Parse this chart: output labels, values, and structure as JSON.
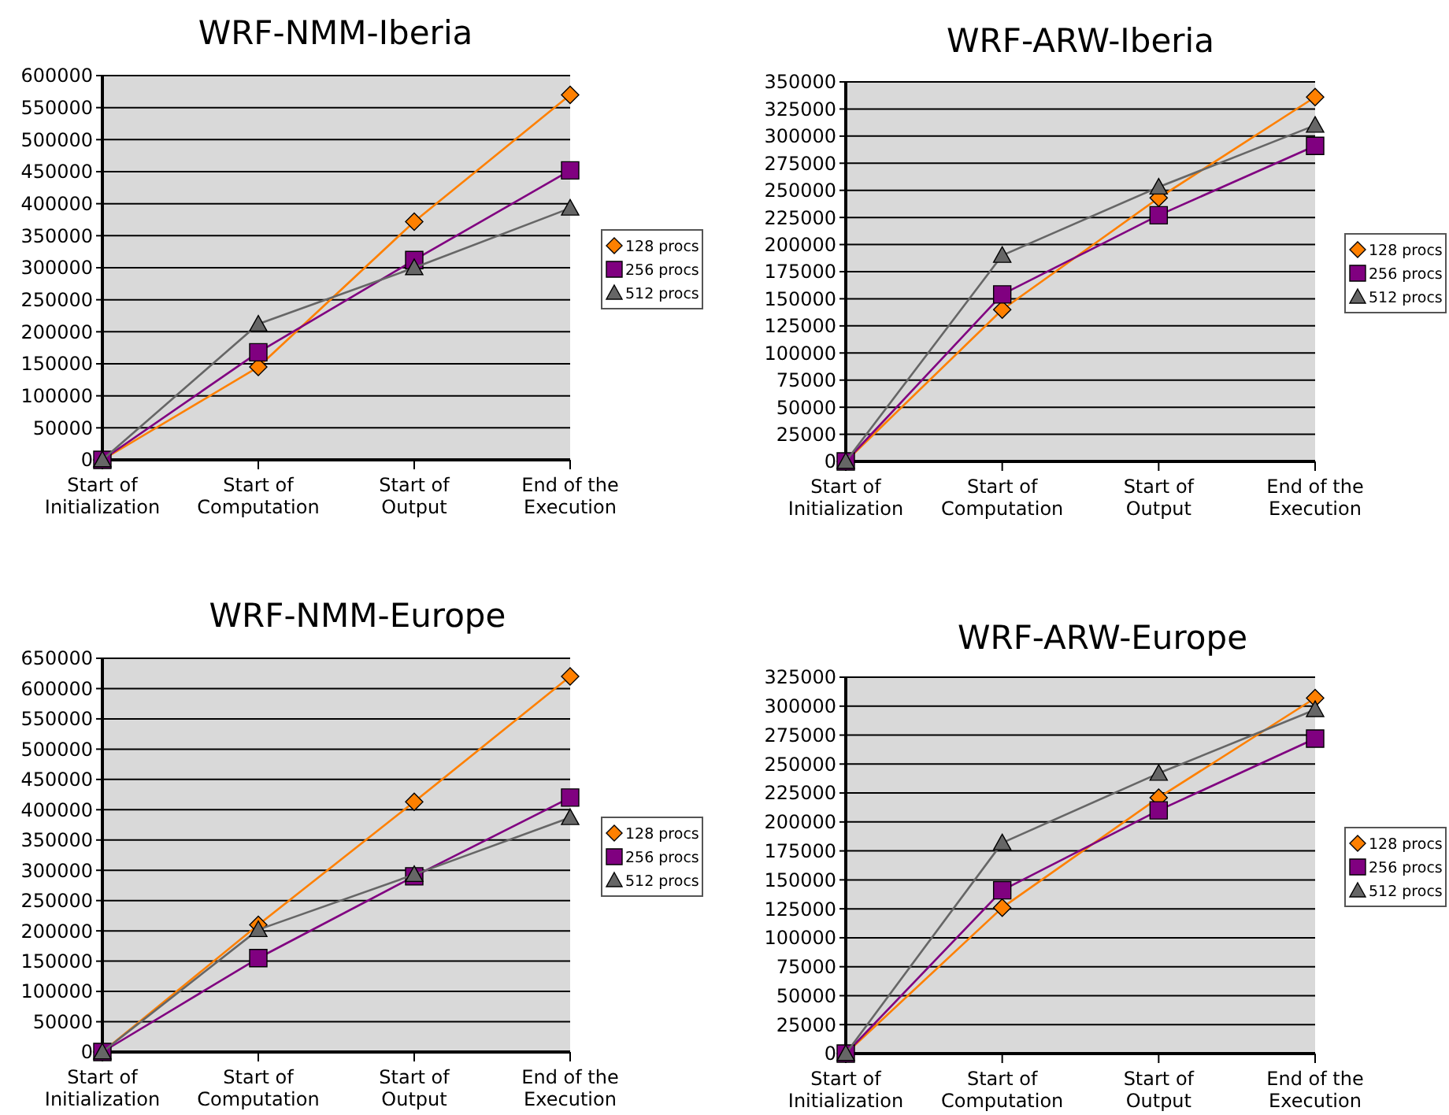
{
  "chart_data": [
    {
      "type": "line",
      "title": "WRF-NMM-Iberia",
      "categories": [
        "Start of\nInitialization",
        "Start of\nComputation",
        "Start of\nOutput",
        "End of the\nExecution"
      ],
      "ylim": [
        0,
        600000
      ],
      "yticks": [
        0,
        50000,
        100000,
        150000,
        200000,
        250000,
        300000,
        350000,
        400000,
        450000,
        500000,
        550000,
        600000
      ],
      "grid": "y",
      "legend": "right",
      "series": [
        {
          "name": "128 procs",
          "color": "#ff8000",
          "marker": "diamond",
          "values": [
            0,
            145000,
            372000,
            570000
          ]
        },
        {
          "name": "256 procs",
          "color": "#800080",
          "marker": "square",
          "values": [
            0,
            168000,
            312000,
            452000
          ]
        },
        {
          "name": "512 procs",
          "color": "#666666",
          "marker": "triangle",
          "values": [
            0,
            212000,
            300000,
            393000
          ]
        }
      ]
    },
    {
      "type": "line",
      "title": "WRF-ARW-Iberia",
      "categories": [
        "Start of\nInitialization",
        "Start of\nComputation",
        "Start of\nOutput",
        "End of the\nExecution"
      ],
      "ylim": [
        0,
        350000
      ],
      "yticks": [
        0,
        25000,
        50000,
        75000,
        100000,
        125000,
        150000,
        175000,
        200000,
        225000,
        250000,
        275000,
        300000,
        325000,
        350000
      ],
      "grid": "y",
      "legend": "right",
      "series": [
        {
          "name": "128 procs",
          "color": "#ff8000",
          "marker": "diamond",
          "values": [
            0,
            140000,
            243000,
            336000
          ]
        },
        {
          "name": "256 procs",
          "color": "#800080",
          "marker": "square",
          "values": [
            0,
            154000,
            227000,
            291000
          ]
        },
        {
          "name": "512 procs",
          "color": "#666666",
          "marker": "triangle",
          "values": [
            0,
            190000,
            253000,
            310000
          ]
        }
      ]
    },
    {
      "type": "line",
      "title": "WRF-NMM-Europe",
      "categories": [
        "Start of\nInitialization",
        "Start of\nComputation",
        "Start of\nOutput",
        "End of the\nExecution"
      ],
      "ylim": [
        0,
        650000
      ],
      "yticks": [
        0,
        50000,
        100000,
        150000,
        200000,
        250000,
        300000,
        350000,
        400000,
        450000,
        500000,
        550000,
        600000,
        650000
      ],
      "grid": "y",
      "legend": "right",
      "series": [
        {
          "name": "128 procs",
          "color": "#ff8000",
          "marker": "diamond",
          "values": [
            0,
            210000,
            413000,
            620000
          ]
        },
        {
          "name": "256 procs",
          "color": "#800080",
          "marker": "square",
          "values": [
            0,
            155000,
            290000,
            420000
          ]
        },
        {
          "name": "512 procs",
          "color": "#666666",
          "marker": "triangle",
          "values": [
            0,
            202000,
            293000,
            387000
          ]
        }
      ]
    },
    {
      "type": "line",
      "title": "WRF-ARW-Europe",
      "categories": [
        "Start of\nInitialization",
        "Start of\nComputation",
        "Start of\nOutput",
        "End of the\nExecution"
      ],
      "ylim": [
        0,
        325000
      ],
      "yticks": [
        0,
        25000,
        50000,
        75000,
        100000,
        125000,
        150000,
        175000,
        200000,
        225000,
        250000,
        275000,
        300000,
        325000
      ],
      "grid": "y",
      "legend": "right",
      "series": [
        {
          "name": "128 procs",
          "color": "#ff8000",
          "marker": "diamond",
          "values": [
            0,
            126000,
            221000,
            307000
          ]
        },
        {
          "name": "256 procs",
          "color": "#800080",
          "marker": "square",
          "values": [
            0,
            141000,
            210000,
            272000
          ]
        },
        {
          "name": "512 procs",
          "color": "#666666",
          "marker": "triangle",
          "values": [
            0,
            182000,
            242000,
            297000
          ]
        }
      ]
    }
  ]
}
